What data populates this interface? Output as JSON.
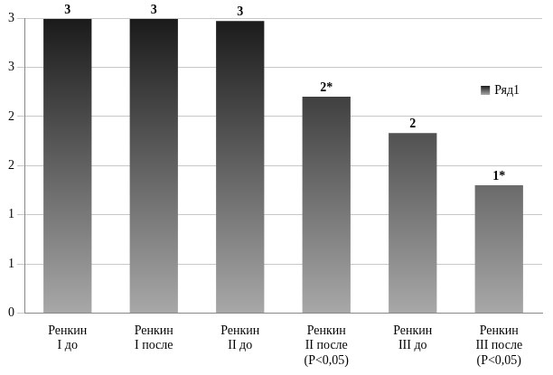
{
  "chart_data": {
    "type": "bar",
    "categories": [
      "Ренкин\nI до",
      "Ренкин\nI после",
      "Ренкин\nII до",
      "Ренкин\nII после\n(P<0,05)",
      "Ренкин\nIII до",
      "Ренкин\nIII после\n(P<0,05)"
    ],
    "series": [
      {
        "name": "Ряд1",
        "color": "#1a1a1a",
        "values": [
          2.99,
          2.99,
          2.97,
          2.2,
          1.83,
          1.3
        ],
        "value_labels": [
          "3",
          "3",
          "3",
          "2*",
          "2",
          "1*"
        ]
      }
    ],
    "ylim": [
      0,
      3
    ],
    "yticks": [
      0,
      {
        "value": 0.5,
        "label": "1"
      },
      1,
      {
        "value": 1.5,
        "label": "2"
      },
      2,
      {
        "value": 2.5,
        "label": "3"
      },
      3
    ],
    "grid": true,
    "legend": "upper right",
    "data_labels": true
  }
}
